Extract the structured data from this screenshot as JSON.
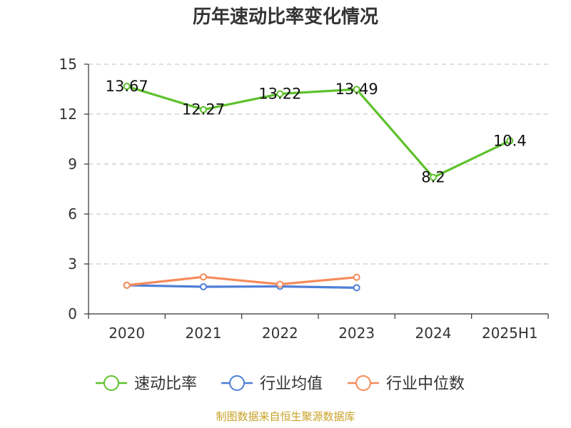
{
  "title": "历年速动比率变化情况",
  "source": "制图数据来自恒生聚源数据库",
  "chart_data": {
    "type": "line",
    "categories": [
      "2020",
      "2021",
      "2022",
      "2023",
      "2024",
      "2025H1"
    ],
    "ylim": [
      0,
      15
    ],
    "yticks": [
      0,
      3,
      6,
      9,
      12,
      15
    ],
    "grid": true,
    "legend_position": "bottom",
    "series": [
      {
        "name": "速动比率",
        "color": "#5ec12c",
        "values": [
          13.67,
          12.27,
          13.22,
          13.49,
          8.2,
          10.4
        ],
        "labels": [
          "13.67",
          "12.27",
          "13.22",
          "13.49",
          "8.2",
          "10.4"
        ]
      },
      {
        "name": "行业均值",
        "color": "#4e7fd6",
        "values": [
          1.72,
          1.63,
          1.65,
          1.57,
          null,
          null
        ]
      },
      {
        "name": "行业中位数",
        "color": "#f58b5b",
        "values": [
          1.72,
          2.22,
          1.78,
          2.2,
          null,
          null
        ]
      }
    ]
  }
}
